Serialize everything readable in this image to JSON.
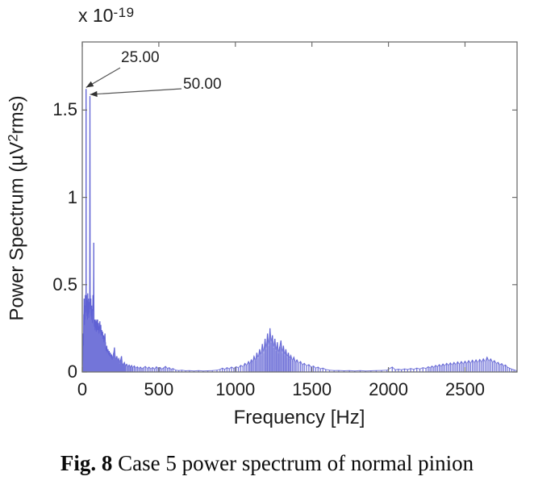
{
  "figure": {
    "scale_label": {
      "base": "x 10",
      "exponent": "-19"
    },
    "caption": {
      "prefix": "Fig. 8",
      "rest": " Case 5 power spectrum of normal pinion"
    }
  },
  "chart_data": {
    "type": "line",
    "subtype": "power-spectrum-spikes",
    "title": "",
    "xlabel": "Frequency [Hz]",
    "ylabel": {
      "pre": "Power Spectrum (µV",
      "sup": "2",
      "post": "rms)"
    },
    "y_scale_factor": "1e-19",
    "xlim": [
      0,
      2840
    ],
    "ylim": [
      0,
      1.89
    ],
    "xticks": [
      "0",
      "500",
      "1000",
      "1500",
      "2000",
      "2500"
    ],
    "xtick_values": [
      0,
      500,
      1000,
      1500,
      2000,
      2500
    ],
    "yticks": [
      "0",
      "0.5",
      "1",
      "1.5"
    ],
    "ytick_values": [
      0,
      0.5,
      1,
      1.5
    ],
    "grid": false,
    "legend": false,
    "frame": "box-with-inward-ticks",
    "line_color": "#5a5dd2",
    "axis_color": "#6e6e6e",
    "annotation_arrow_color": "#555555",
    "annotations": [
      {
        "label": "25.00",
        "freq": 25,
        "value": 1.62,
        "text_pos": [
          150,
          61
        ],
        "line_from": [
          149,
          84
        ]
      },
      {
        "label": "50.00",
        "freq": 50,
        "value": 1.58,
        "text_pos": [
          227,
          94
        ],
        "line_from": [
          225,
          110
        ]
      }
    ],
    "points": [
      [
        2,
        0.04
      ],
      [
        4,
        0.1
      ],
      [
        6,
        0.22
      ],
      [
        8,
        0.15
      ],
      [
        10,
        0.33
      ],
      [
        12,
        0.42
      ],
      [
        14,
        0.27
      ],
      [
        16,
        0.38
      ],
      [
        18,
        0.3
      ],
      [
        20,
        0.44
      ],
      [
        22,
        0.34
      ],
      [
        24,
        0.4
      ],
      [
        25,
        1.62
      ],
      [
        26,
        0.38
      ],
      [
        28,
        0.44
      ],
      [
        30,
        0.32
      ],
      [
        32,
        0.41
      ],
      [
        34,
        0.3
      ],
      [
        36,
        0.45
      ],
      [
        38,
        0.33
      ],
      [
        40,
        0.42
      ],
      [
        42,
        0.31
      ],
      [
        44,
        0.4
      ],
      [
        46,
        0.34
      ],
      [
        48,
        0.42
      ],
      [
        50,
        1.58
      ],
      [
        52,
        0.44
      ],
      [
        54,
        0.36
      ],
      [
        56,
        0.42
      ],
      [
        58,
        0.32
      ],
      [
        60,
        0.38
      ],
      [
        62,
        0.3
      ],
      [
        64,
        0.36
      ],
      [
        66,
        0.28
      ],
      [
        68,
        0.38
      ],
      [
        70,
        0.44
      ],
      [
        72,
        0.35
      ],
      [
        75,
        0.74
      ],
      [
        77,
        0.3
      ],
      [
        79,
        0.26
      ],
      [
        81,
        0.3
      ],
      [
        83,
        0.24
      ],
      [
        85,
        0.3
      ],
      [
        87,
        0.25
      ],
      [
        89,
        0.29
      ],
      [
        91,
        0.23
      ],
      [
        93,
        0.27
      ],
      [
        95,
        0.3
      ],
      [
        97,
        0.24
      ],
      [
        100,
        0.3
      ],
      [
        103,
        0.24
      ],
      [
        106,
        0.28
      ],
      [
        109,
        0.22
      ],
      [
        112,
        0.26
      ],
      [
        115,
        0.29
      ],
      [
        118,
        0.23
      ],
      [
        121,
        0.27
      ],
      [
        124,
        0.21
      ],
      [
        127,
        0.24
      ],
      [
        130,
        0.21
      ],
      [
        133,
        0.23
      ],
      [
        136,
        0.19
      ],
      [
        139,
        0.21
      ],
      [
        142,
        0.17
      ],
      [
        145,
        0.2
      ],
      [
        148,
        0.22
      ],
      [
        151,
        0.17
      ],
      [
        154,
        0.14
      ],
      [
        157,
        0.12
      ],
      [
        160,
        0.15
      ],
      [
        164,
        0.11
      ],
      [
        168,
        0.13
      ],
      [
        172,
        0.1
      ],
      [
        176,
        0.12
      ],
      [
        180,
        0.09
      ],
      [
        184,
        0.11
      ],
      [
        188,
        0.08
      ],
      [
        192,
        0.1
      ],
      [
        196,
        0.07
      ],
      [
        200,
        0.09
      ],
      [
        205,
        0.11
      ],
      [
        210,
        0.14
      ],
      [
        215,
        0.09
      ],
      [
        220,
        0.07
      ],
      [
        226,
        0.09
      ],
      [
        232,
        0.06
      ],
      [
        238,
        0.08
      ],
      [
        244,
        0.05
      ],
      [
        250,
        0.07
      ],
      [
        256,
        0.09
      ],
      [
        262,
        0.05
      ],
      [
        268,
        0.04
      ],
      [
        275,
        0.055
      ],
      [
        282,
        0.035
      ],
      [
        290,
        0.045
      ],
      [
        298,
        0.03
      ],
      [
        306,
        0.04
      ],
      [
        314,
        0.028
      ],
      [
        322,
        0.038
      ],
      [
        330,
        0.025
      ],
      [
        340,
        0.035
      ],
      [
        350,
        0.022
      ],
      [
        360,
        0.03
      ],
      [
        370,
        0.02
      ],
      [
        380,
        0.028
      ],
      [
        390,
        0.018
      ],
      [
        400,
        0.025
      ],
      [
        412,
        0.032
      ],
      [
        424,
        0.02
      ],
      [
        436,
        0.028
      ],
      [
        448,
        0.018
      ],
      [
        460,
        0.026
      ],
      [
        472,
        0.016
      ],
      [
        484,
        0.03
      ],
      [
        496,
        0.02
      ],
      [
        508,
        0.026
      ],
      [
        520,
        0.016
      ],
      [
        532,
        0.024
      ],
      [
        544,
        0.032
      ],
      [
        556,
        0.02
      ],
      [
        568,
        0.025
      ],
      [
        580,
        0.015
      ],
      [
        592,
        0.02
      ],
      [
        610,
        0.01
      ],
      [
        630,
        0.008
      ],
      [
        650,
        0.01
      ],
      [
        675,
        0.007
      ],
      [
        700,
        0.008
      ],
      [
        730,
        0.006
      ],
      [
        760,
        0.008
      ],
      [
        790,
        0.006
      ],
      [
        820,
        0.007
      ],
      [
        850,
        0.008
      ],
      [
        880,
        0.01
      ],
      [
        900,
        0.015
      ],
      [
        915,
        0.022
      ],
      [
        930,
        0.015
      ],
      [
        945,
        0.025
      ],
      [
        960,
        0.018
      ],
      [
        975,
        0.028
      ],
      [
        990,
        0.02
      ],
      [
        1005,
        0.03
      ],
      [
        1020,
        0.024
      ],
      [
        1035,
        0.038
      ],
      [
        1050,
        0.03
      ],
      [
        1062,
        0.05
      ],
      [
        1074,
        0.038
      ],
      [
        1086,
        0.06
      ],
      [
        1095,
        0.045
      ],
      [
        1104,
        0.07
      ],
      [
        1113,
        0.055
      ],
      [
        1122,
        0.09
      ],
      [
        1131,
        0.065
      ],
      [
        1140,
        0.11
      ],
      [
        1149,
        0.08
      ],
      [
        1158,
        0.13
      ],
      [
        1167,
        0.095
      ],
      [
        1176,
        0.16
      ],
      [
        1185,
        0.11
      ],
      [
        1194,
        0.19
      ],
      [
        1202,
        0.13
      ],
      [
        1210,
        0.22
      ],
      [
        1218,
        0.15
      ],
      [
        1226,
        0.25
      ],
      [
        1234,
        0.17
      ],
      [
        1242,
        0.21
      ],
      [
        1250,
        0.14
      ],
      [
        1258,
        0.19
      ],
      [
        1266,
        0.12
      ],
      [
        1274,
        0.17
      ],
      [
        1282,
        0.11
      ],
      [
        1290,
        0.145
      ],
      [
        1298,
        0.18
      ],
      [
        1306,
        0.11
      ],
      [
        1314,
        0.15
      ],
      [
        1322,
        0.095
      ],
      [
        1330,
        0.13
      ],
      [
        1338,
        0.085
      ],
      [
        1346,
        0.11
      ],
      [
        1354,
        0.075
      ],
      [
        1362,
        0.095
      ],
      [
        1372,
        0.065
      ],
      [
        1382,
        0.085
      ],
      [
        1392,
        0.055
      ],
      [
        1402,
        0.07
      ],
      [
        1414,
        0.05
      ],
      [
        1426,
        0.06
      ],
      [
        1438,
        0.04
      ],
      [
        1450,
        0.05
      ],
      [
        1465,
        0.035
      ],
      [
        1480,
        0.042
      ],
      [
        1495,
        0.028
      ],
      [
        1510,
        0.034
      ],
      [
        1525,
        0.022
      ],
      [
        1540,
        0.028
      ],
      [
        1555,
        0.018
      ],
      [
        1572,
        0.022
      ],
      [
        1590,
        0.014
      ],
      [
        1615,
        0.01
      ],
      [
        1645,
        0.008
      ],
      [
        1675,
        0.009
      ],
      [
        1710,
        0.007
      ],
      [
        1745,
        0.008
      ],
      [
        1780,
        0.006
      ],
      [
        1815,
        0.008
      ],
      [
        1850,
        0.006
      ],
      [
        1885,
        0.007
      ],
      [
        1920,
        0.008
      ],
      [
        1955,
        0.009
      ],
      [
        1990,
        0.01
      ],
      [
        2025,
        0.028
      ],
      [
        2045,
        0.012
      ],
      [
        2065,
        0.016
      ],
      [
        2085,
        0.012
      ],
      [
        2105,
        0.018
      ],
      [
        2125,
        0.014
      ],
      [
        2145,
        0.02
      ],
      [
        2165,
        0.015
      ],
      [
        2185,
        0.022
      ],
      [
        2205,
        0.017
      ],
      [
        2225,
        0.025
      ],
      [
        2245,
        0.02
      ],
      [
        2260,
        0.03
      ],
      [
        2272,
        0.024
      ],
      [
        2284,
        0.034
      ],
      [
        2296,
        0.026
      ],
      [
        2308,
        0.038
      ],
      [
        2320,
        0.03
      ],
      [
        2332,
        0.042
      ],
      [
        2344,
        0.032
      ],
      [
        2356,
        0.046
      ],
      [
        2368,
        0.035
      ],
      [
        2380,
        0.05
      ],
      [
        2392,
        0.038
      ],
      [
        2404,
        0.052
      ],
      [
        2416,
        0.04
      ],
      [
        2428,
        0.055
      ],
      [
        2440,
        0.042
      ],
      [
        2452,
        0.058
      ],
      [
        2464,
        0.044
      ],
      [
        2476,
        0.06
      ],
      [
        2488,
        0.046
      ],
      [
        2500,
        0.062
      ],
      [
        2512,
        0.048
      ],
      [
        2524,
        0.065
      ],
      [
        2536,
        0.05
      ],
      [
        2548,
        0.068
      ],
      [
        2560,
        0.052
      ],
      [
        2572,
        0.07
      ],
      [
        2584,
        0.054
      ],
      [
        2596,
        0.072
      ],
      [
        2608,
        0.056
      ],
      [
        2620,
        0.076
      ],
      [
        2632,
        0.058
      ],
      [
        2644,
        0.085
      ],
      [
        2656,
        0.062
      ],
      [
        2668,
        0.075
      ],
      [
        2680,
        0.055
      ],
      [
        2692,
        0.065
      ],
      [
        2704,
        0.048
      ],
      [
        2716,
        0.055
      ],
      [
        2728,
        0.04
      ],
      [
        2740,
        0.048
      ],
      [
        2752,
        0.034
      ],
      [
        2764,
        0.04
      ],
      [
        2776,
        0.028
      ],
      [
        2790,
        0.022
      ],
      [
        2805,
        0.016
      ],
      [
        2820,
        0.012
      ],
      [
        2835,
        0.008
      ]
    ]
  }
}
